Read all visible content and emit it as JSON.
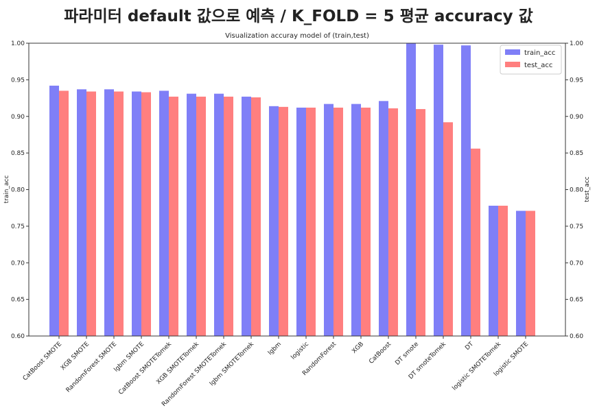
{
  "page_title": "파라미터 default 값으로 예측 / K_FOLD = 5 평균 accuracy 값",
  "chart_data": {
    "type": "bar",
    "title": "Visualization accuray model of (train,test)",
    "xlabel": "",
    "ylabel": "train_acc",
    "ylabel_right": "test_acc",
    "ylim": [
      0.6,
      1.0
    ],
    "yticks": [
      0.6,
      0.65,
      0.7,
      0.75,
      0.8,
      0.85,
      0.9,
      0.95,
      1.0
    ],
    "ytick_labels": [
      "0.60",
      "0.65",
      "0.70",
      "0.75",
      "0.80",
      "0.85",
      "0.90",
      "0.95",
      "1.00"
    ],
    "grid": false,
    "legend_position": "top-right",
    "categories": [
      "CatBoost SMOTE",
      "XGB SMOTE",
      "RandomForest SMOTE",
      "lgbm SMOTE",
      "CatBoost SMOTETomek",
      "XGB SMOTETomek",
      "RandomForest SMOTETomek",
      "lgbm SMOTETomek",
      "lgbm",
      "logistic",
      "RandomForest",
      "XGB",
      "CatBoost",
      "DT smote",
      "DT smoteTomek",
      "DT",
      "logistic SMOTETomek",
      "logistic SMOTE"
    ],
    "series": [
      {
        "name": "train_acc",
        "color": "#7f7ff7",
        "values": [
          0.942,
          0.937,
          0.937,
          0.934,
          0.935,
          0.931,
          0.931,
          0.927,
          0.914,
          0.912,
          0.917,
          0.917,
          0.921,
          1.0,
          0.998,
          0.997,
          0.778,
          0.771
        ]
      },
      {
        "name": "test_acc",
        "color": "#ff7f7f",
        "values": [
          0.935,
          0.934,
          0.934,
          0.933,
          0.927,
          0.927,
          0.927,
          0.926,
          0.913,
          0.912,
          0.912,
          0.912,
          0.911,
          0.91,
          0.892,
          0.856,
          0.778,
          0.771
        ]
      }
    ]
  }
}
